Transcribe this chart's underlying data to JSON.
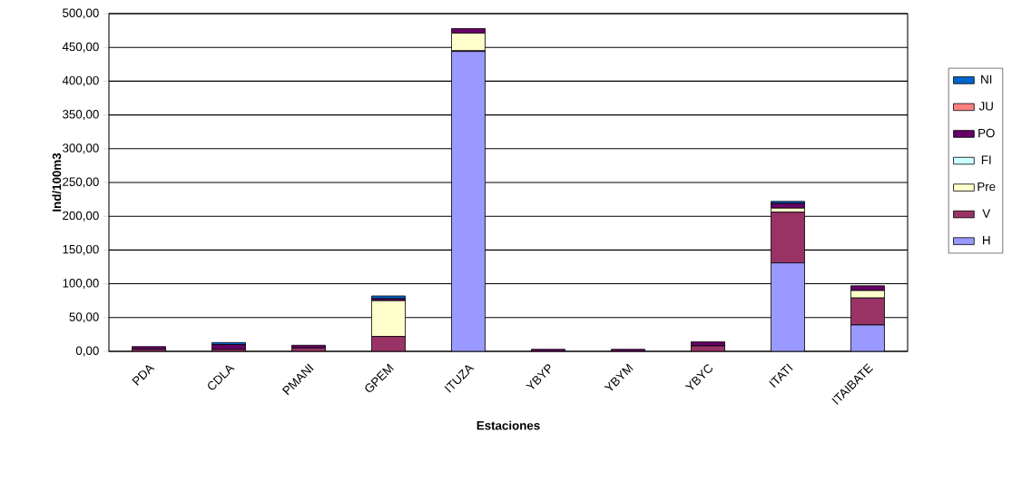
{
  "chart_data": {
    "type": "bar",
    "stacked": true,
    "xlabel": "Estaciones",
    "ylabel": "Ind/100m3",
    "categories": [
      "PDA",
      "CDLA",
      "PMANI",
      "GPEM",
      "ITUZA",
      "YBYP",
      "YBYM",
      "YBYC",
      "ITATI",
      "ITAIBATE"
    ],
    "series": [
      {
        "name": "H",
        "color": "#9999ff",
        "values": [
          0,
          0,
          0,
          0,
          444,
          0,
          0,
          0,
          131,
          39
        ]
      },
      {
        "name": "V",
        "color": "#993366",
        "values": [
          3,
          3,
          5,
          22,
          1,
          0,
          0,
          8,
          75,
          40
        ]
      },
      {
        "name": "Pre",
        "color": "#ffffcc",
        "values": [
          0,
          0,
          0,
          53,
          26,
          0,
          0,
          0,
          6,
          11
        ]
      },
      {
        "name": "FI",
        "color": "#ccffff",
        "values": [
          0,
          0,
          0,
          0,
          0,
          0,
          0,
          0,
          0,
          0
        ]
      },
      {
        "name": "PO",
        "color": "#660066",
        "values": [
          4,
          7,
          4,
          3,
          7,
          3,
          3,
          6,
          7,
          7
        ]
      },
      {
        "name": "JU",
        "color": "#ff8080",
        "values": [
          0,
          0,
          0,
          0,
          0,
          0,
          0,
          0,
          0,
          0
        ]
      },
      {
        "name": "NI",
        "color": "#0066cc",
        "values": [
          0,
          3,
          0,
          4,
          0,
          0,
          0,
          0,
          3,
          0
        ]
      }
    ],
    "ylim": [
      0,
      500
    ],
    "yticks": [
      {
        "value": 0,
        "label": "0,00"
      },
      {
        "value": 50,
        "label": "50,00"
      },
      {
        "value": 100,
        "label": "100,00"
      },
      {
        "value": 150,
        "label": "150,00"
      },
      {
        "value": 200,
        "label": "200,00"
      },
      {
        "value": 250,
        "label": "250,00"
      },
      {
        "value": 300,
        "label": "300,00"
      },
      {
        "value": 350,
        "label": "350,00"
      },
      {
        "value": 400,
        "label": "400,00"
      },
      {
        "value": 450,
        "label": "450,00"
      },
      {
        "value": 500,
        "label": "500,00"
      }
    ],
    "grid": "y",
    "legend": "right"
  }
}
